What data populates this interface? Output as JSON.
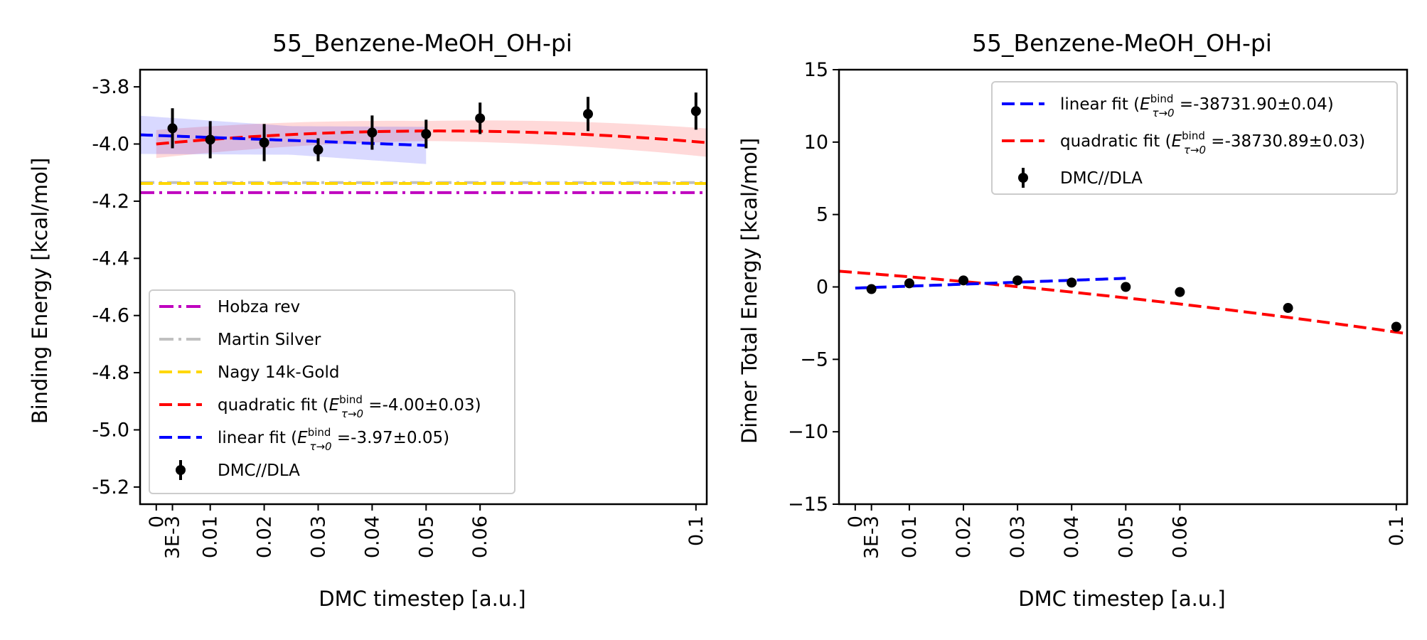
{
  "chart_data": [
    {
      "type": "scatter",
      "title": "55_Benzene-MeOH_OH-pi",
      "xlabel": "DMC timestep [a.u.]",
      "ylabel": "Binding Energy [kcal/mol]",
      "xlim": [
        -0.003,
        0.102
      ],
      "ylim": [
        -5.26,
        -3.74
      ],
      "xticks": [
        0,
        0.003,
        0.01,
        0.02,
        0.03,
        0.04,
        0.05,
        0.06,
        0.1
      ],
      "xtick_labels": [
        "0",
        "3E-3",
        "0.01",
        "0.02",
        "0.03",
        "0.04",
        "0.05",
        "0.06",
        "0.1"
      ],
      "yticks": [
        -3.8,
        -4.0,
        -4.2,
        -4.4,
        -4.6,
        -4.8,
        -5.0,
        -5.2
      ],
      "ytick_labels": [
        "-3.8",
        "-4.0",
        "-4.2",
        "-4.4",
        "-4.6",
        "-4.8",
        "-5.0",
        "-5.2"
      ],
      "grid": false,
      "legend_position": "lower-left",
      "legend": [
        {
          "label": "Hobza rev",
          "style": "dashdot",
          "color": "#bf00bf"
        },
        {
          "label": "Martin Silver",
          "style": "dashdot",
          "color": "#c0c0c0"
        },
        {
          "label": "Nagy 14k-Gold",
          "style": "dashed",
          "color": "#ffd700"
        },
        {
          "label": "quadratic fit (",
          "sub_sym": "E",
          "sub_sup": "bind",
          "sub_low": "τ→0",
          "sub_val": " =-4.00±0.03)",
          "style": "dashed",
          "color": "#ff0000"
        },
        {
          "label": "linear fit (",
          "sub_sym": "E",
          "sub_sup": "bind",
          "sub_low": "τ→0",
          "sub_val": " =-3.97±0.05)",
          "style": "dashed",
          "color": "#0000ff"
        },
        {
          "label": "DMC//DLA",
          "style": "errorbar",
          "color": "#000000"
        }
      ],
      "hlines": [
        {
          "name": "Hobza rev",
          "y": -4.17,
          "color": "#bf00bf",
          "style": "dashdot"
        },
        {
          "name": "Martin Silver",
          "y": -4.135,
          "color": "#c0c0c0",
          "style": "dashdot"
        },
        {
          "name": "Nagy 14k-Gold",
          "y": -4.138,
          "color": "#ffd700",
          "style": "dashed"
        }
      ],
      "fits": [
        {
          "name": "quadratic fit",
          "kind": "quadratic",
          "coef": [
            -4.0,
            1.74,
            -16.6
          ],
          "x_range": [
            0,
            0.102
          ],
          "band": 0.035,
          "color": "#ff0000"
        },
        {
          "name": "linear fit",
          "kind": "linear",
          "coef": [
            -3.97,
            -0.7
          ],
          "x_range": [
            -0.003,
            0.05
          ],
          "band": 0.05,
          "color": "#0000ff"
        }
      ],
      "series": [
        {
          "name": "DMC//DLA",
          "x": [
            0.003,
            0.01,
            0.02,
            0.03,
            0.04,
            0.05,
            0.06,
            0.08,
            0.1
          ],
          "y": [
            -3.945,
            -3.985,
            -3.995,
            -4.02,
            -3.96,
            -3.965,
            -3.91,
            -3.895,
            -3.885
          ],
          "err": [
            0.07,
            0.065,
            0.065,
            0.04,
            0.06,
            0.05,
            0.055,
            0.06,
            0.065
          ],
          "color": "#000000"
        }
      ]
    },
    {
      "type": "scatter",
      "title": "55_Benzene-MeOH_OH-pi",
      "xlabel": "DMC timestep [a.u.]",
      "ylabel": "Dimer Total Energy [kcal/mol]",
      "xlim": [
        -0.003,
        0.102
      ],
      "ylim": [
        -15,
        15
      ],
      "xticks": [
        0,
        0.003,
        0.01,
        0.02,
        0.03,
        0.04,
        0.05,
        0.06,
        0.1
      ],
      "xtick_labels": [
        "0",
        "3E-3",
        "0.01",
        "0.02",
        "0.03",
        "0.04",
        "0.05",
        "0.06",
        "0.1"
      ],
      "yticks": [
        15,
        10,
        5,
        0,
        -5,
        -10,
        -15
      ],
      "ytick_labels": [
        "15",
        "10",
        "5",
        "0",
        "−5",
        "−10",
        "−15"
      ],
      "grid": false,
      "legend_position": "top-right",
      "legend": [
        {
          "label": "linear fit (",
          "sub_sym": "E",
          "sub_sup": "bind",
          "sub_low": "τ→0",
          "sub_val": " =-38731.90±0.04)",
          "style": "dashed",
          "color": "#0000ff"
        },
        {
          "label": "quadratic fit (",
          "sub_sym": "E",
          "sub_sup": "bind",
          "sub_low": "τ→0",
          "sub_val": " =-38730.89±0.03)",
          "style": "dashed",
          "color": "#ff0000"
        },
        {
          "label": "DMC//DLA",
          "style": "errorbar",
          "color": "#000000"
        }
      ],
      "hlines": [],
      "fits": [
        {
          "name": "quadratic fit",
          "kind": "quadratic",
          "coef": [
            1.0,
            -29.0,
            -122.0
          ],
          "x_range": [
            -0.003,
            0.102
          ],
          "band": 0,
          "color": "#ff0000"
        },
        {
          "name": "linear fit",
          "kind": "linear",
          "coef": [
            -0.08,
            13.5
          ],
          "x_range": [
            0,
            0.05
          ],
          "band": 0,
          "color": "#0000ff"
        }
      ],
      "series": [
        {
          "name": "DMC//DLA",
          "x": [
            0.003,
            0.01,
            0.02,
            0.03,
            0.04,
            0.05,
            0.06,
            0.08,
            0.1
          ],
          "y": [
            -0.15,
            0.25,
            0.45,
            0.45,
            0.3,
            0.0,
            -0.35,
            -1.45,
            -2.75
          ],
          "err": [
            0.1,
            0.1,
            0.1,
            0.1,
            0.1,
            0.1,
            0.1,
            0.1,
            0.1
          ],
          "color": "#000000"
        }
      ]
    }
  ]
}
